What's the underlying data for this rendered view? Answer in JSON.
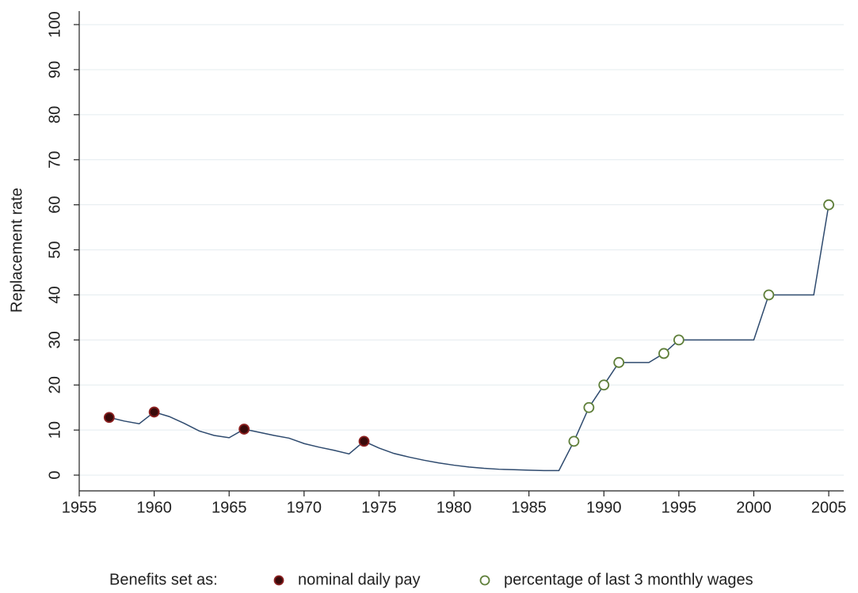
{
  "chart_data": {
    "type": "line",
    "y_label": "Replacement rate",
    "legend_title": "Benefits set as:",
    "legend": "bottom",
    "grid": true,
    "xlim": [
      1955,
      2006
    ],
    "ylim": [
      -3.5,
      103
    ],
    "xticks": [
      1955,
      1960,
      1965,
      1970,
      1975,
      1980,
      1985,
      1990,
      1995,
      2000,
      2005
    ],
    "yticks": [
      0,
      10,
      20,
      30,
      40,
      50,
      60,
      70,
      80,
      90,
      100
    ],
    "line": {
      "color": "#2e4a6e",
      "x": [
        1957,
        1958,
        1959,
        1960,
        1961,
        1962,
        1963,
        1964,
        1965,
        1966,
        1967,
        1968,
        1969,
        1970,
        1971,
        1972,
        1973,
        1974,
        1975,
        1976,
        1977,
        1978,
        1979,
        1980,
        1981,
        1982,
        1983,
        1984,
        1985,
        1986,
        1987,
        1988,
        1989,
        1990,
        1991,
        1992,
        1993,
        1994,
        1995,
        1996,
        1997,
        1998,
        1999,
        2000,
        2001,
        2002,
        2003,
        2004,
        2005
      ],
      "values": [
        12.8,
        12,
        11.4,
        14,
        13,
        11.5,
        9.8,
        8.8,
        8.3,
        10.2,
        9.5,
        8.8,
        8.2,
        7,
        6.2,
        5.5,
        4.7,
        7.5,
        6,
        4.8,
        4,
        3.3,
        2.7,
        2.2,
        1.8,
        1.5,
        1.3,
        1.2,
        1.1,
        1.0,
        1.0,
        7.5,
        15,
        20,
        25,
        25,
        25,
        27,
        30,
        30,
        30,
        30,
        30,
        30,
        40,
        40,
        40,
        40,
        60
      ]
    },
    "series": [
      {
        "name": "nominal daily pay",
        "color": "#3a0a0a",
        "edge": "#8b2020",
        "x": [
          1957,
          1960,
          1966,
          1974
        ],
        "values": [
          12.8,
          14,
          10.2,
          7.5
        ]
      },
      {
        "name": "percentage of last 3 monthly wages",
        "color": "#ffffff",
        "edge": "#5f7f3a",
        "x": [
          1988,
          1989,
          1990,
          1991,
          1994,
          1995,
          2001,
          2005
        ],
        "values": [
          7.5,
          15,
          20,
          25,
          27,
          30,
          40,
          60
        ]
      }
    ]
  }
}
